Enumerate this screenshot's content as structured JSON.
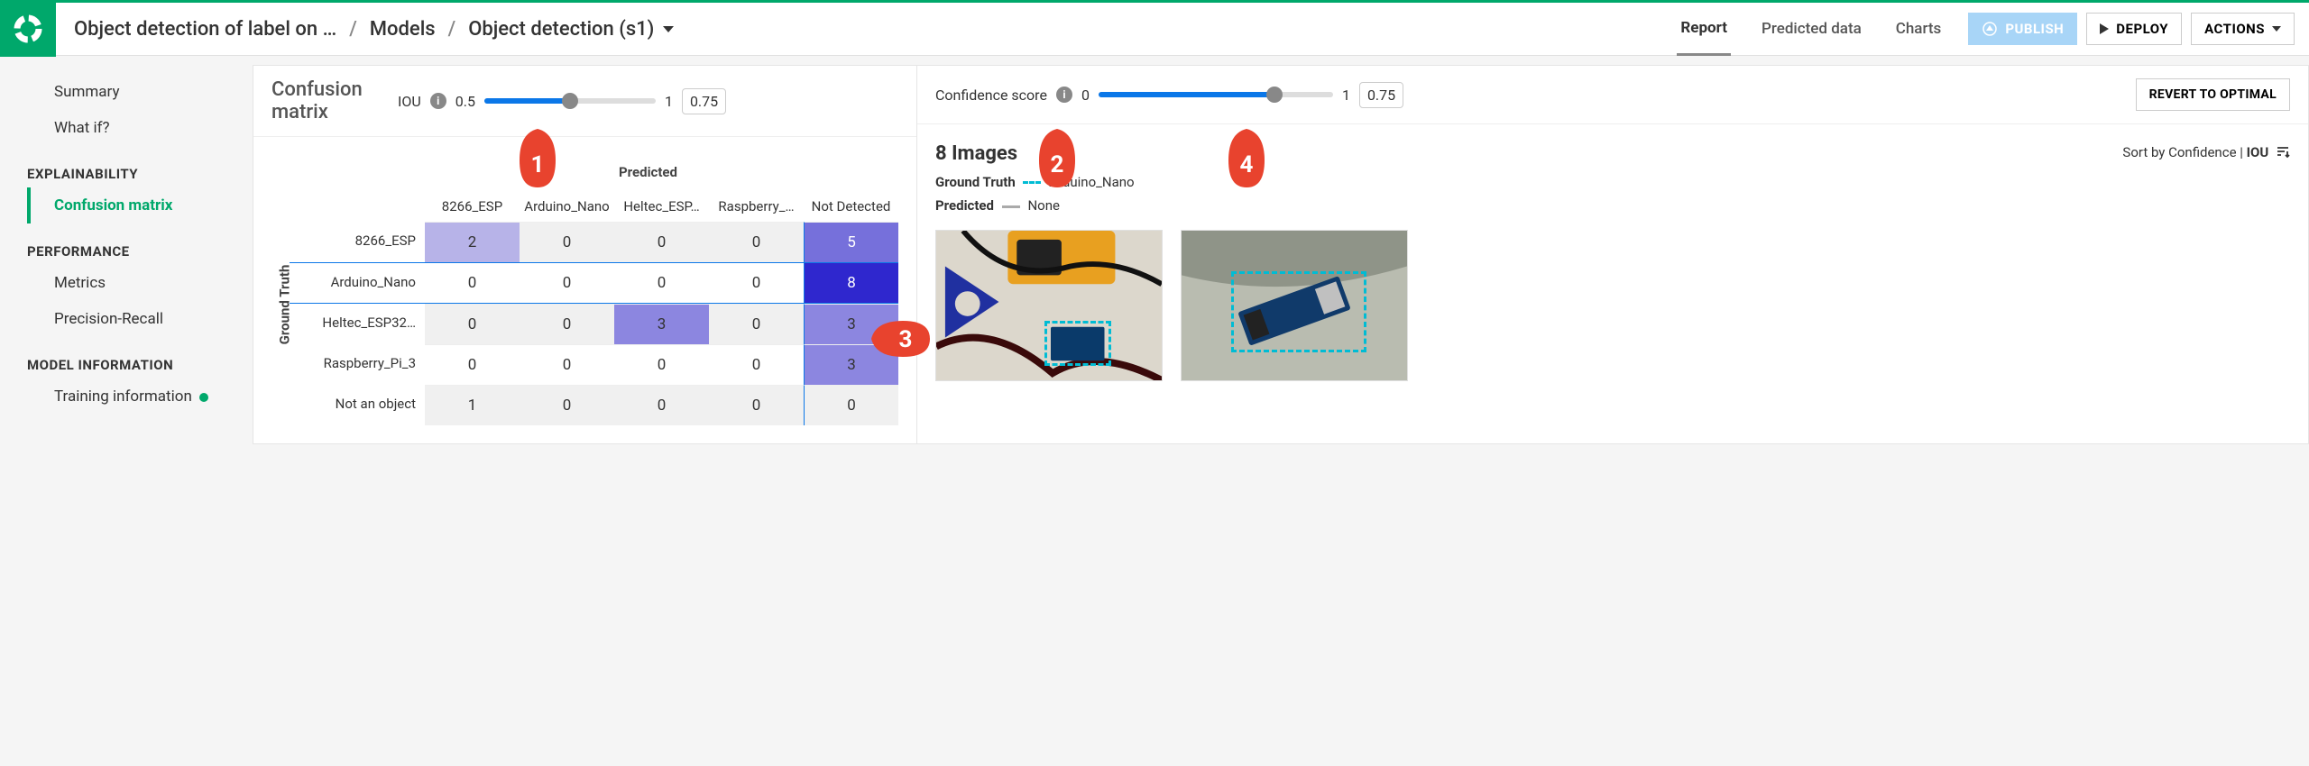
{
  "breadcrumb": {
    "project": "Object detection of label on …",
    "section": "Models",
    "model": "Object detection (s1)"
  },
  "topTabs": {
    "report": "Report",
    "predicted": "Predicted data",
    "charts": "Charts"
  },
  "topActions": {
    "publish": "PUBLISH",
    "deploy": "DEPLOY",
    "actions": "ACTIONS"
  },
  "sidebar": {
    "summary": "Summary",
    "whatif": "What if?",
    "sec_explain": "EXPLAINABILITY",
    "confusion": "Confusion matrix",
    "sec_perf": "PERFORMANCE",
    "metrics": "Metrics",
    "pr": "Precision-Recall",
    "sec_model": "MODEL INFORMATION",
    "training": "Training information"
  },
  "controls": {
    "title": "Confusion matrix",
    "iou": {
      "label": "IOU",
      "min": "0.5",
      "max": "1",
      "value": "0.75",
      "percent": 50
    },
    "conf": {
      "label": "Confidence score",
      "min": "0",
      "max": "1",
      "value": "0.75",
      "percent": 75
    },
    "revert": "REVERT TO OPTIMAL"
  },
  "matrix": {
    "axis_top": "Predicted",
    "axis_left": "Ground Truth",
    "col_headers": [
      "8266_ESP",
      "Arduino_Nano",
      "Heltec_ESP…",
      "Raspberry_…",
      "Not Detected"
    ],
    "row_headers": [
      "8266_ESP",
      "Arduino_Nano",
      "Heltec_ESP32…",
      "Raspberry_Pi_3",
      "Not an object"
    ],
    "rows": [
      [
        "2",
        "0",
        "0",
        "0",
        "5"
      ],
      [
        "0",
        "0",
        "0",
        "0",
        "8"
      ],
      [
        "0",
        "0",
        "3",
        "0",
        "3"
      ],
      [
        "0",
        "0",
        "0",
        "0",
        "3"
      ],
      [
        "1",
        "0",
        "0",
        "0",
        "0"
      ]
    ],
    "cell_bg": [
      [
        "#b7b3e8",
        "#f0f0f0",
        "#f0f0f0",
        "#f0f0f0",
        "#7670db"
      ],
      [
        "#ffffff",
        "#ffffff",
        "#ffffff",
        "#ffffff",
        "#2f27ce"
      ],
      [
        "#f0f0f0",
        "#f0f0f0",
        "#8c86e0",
        "#f0f0f0",
        "#8c86e0"
      ],
      [
        "#ffffff",
        "#ffffff",
        "#ffffff",
        "#ffffff",
        "#8c86e0"
      ],
      [
        "#f0f0f0",
        "#f0f0f0",
        "#f0f0f0",
        "#f0f0f0",
        "#f0f0f0"
      ]
    ],
    "cell_fg": [
      [
        "#333",
        "#333",
        "#333",
        "#333",
        "#fff"
      ],
      [
        "#333",
        "#333",
        "#333",
        "#333",
        "#fff"
      ],
      [
        "#333",
        "#333",
        "#333",
        "#333",
        "#333"
      ],
      [
        "#333",
        "#333",
        "#333",
        "#333",
        "#333"
      ],
      [
        "#333",
        "#333",
        "#333",
        "#333",
        "#333"
      ]
    ],
    "selected_row": 1,
    "selected_col": 4
  },
  "right": {
    "count_text": "8 Images",
    "sort_prefix": "Sort by Confidence | ",
    "sort_iou": "IOU",
    "gt_label": "Ground Truth",
    "gt_value": "Arduino_Nano",
    "pred_label": "Predicted",
    "pred_value": "None"
  },
  "callouts": {
    "c1": "1",
    "c2": "2",
    "c3": "3",
    "c4": "4"
  }
}
